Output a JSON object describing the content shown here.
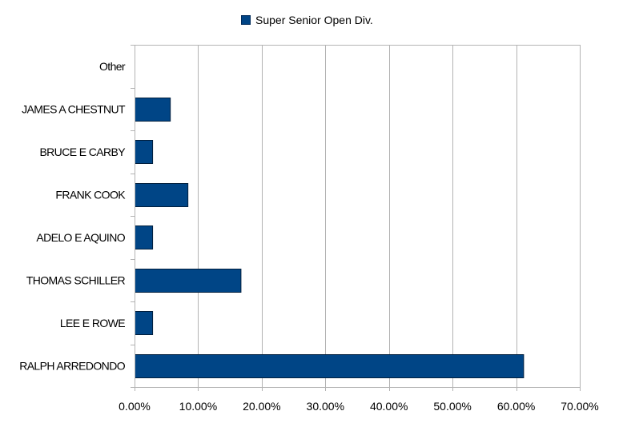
{
  "chart_data": {
    "type": "bar",
    "orientation": "horizontal",
    "categories": [
      "Other",
      "JAMES A CHESTNUT",
      "BRUCE E CARBY",
      "FRANK COOK",
      "ADELO E AQUINO",
      "THOMAS SCHILLER",
      "LEE E ROWE",
      "RALPH ARREDONDO"
    ],
    "series": [
      {
        "name": "Super Senior Open Div.",
        "values": [
          0.0,
          0.0556,
          0.0278,
          0.0833,
          0.0278,
          0.1667,
          0.0278,
          0.6111
        ],
        "color": "#004586"
      }
    ],
    "xlim": [
      0,
      0.7
    ],
    "x_ticks": [
      0,
      0.1,
      0.2,
      0.3,
      0.4,
      0.5,
      0.6,
      0.7
    ],
    "x_tick_labels": [
      "0.00%",
      "10.00%",
      "20.00%",
      "30.00%",
      "40.00%",
      "50.00%",
      "60.00%",
      "70.00%"
    ],
    "grid": "vertical",
    "legend_position": "top",
    "title": "",
    "xlabel": "",
    "ylabel": ""
  }
}
